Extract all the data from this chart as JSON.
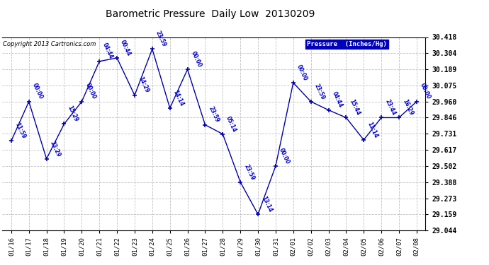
{
  "title": "Barometric Pressure  Daily Low  20130209",
  "copyright": "Copyright 2013 Cartronics.com",
  "legend_label": "Pressure  (Inches/Hg)",
  "x_labels": [
    "01/16",
    "01/17",
    "01/18",
    "01/19",
    "01/20",
    "01/21",
    "01/22",
    "01/23",
    "01/24",
    "01/25",
    "01/26",
    "01/27",
    "01/28",
    "01/29",
    "01/30",
    "01/31",
    "02/01",
    "02/02",
    "02/03",
    "02/04",
    "02/05",
    "02/06",
    "02/07",
    "02/08"
  ],
  "y_values": [
    29.681,
    29.96,
    29.553,
    29.801,
    29.96,
    30.246,
    30.27,
    30.005,
    30.333,
    29.914,
    30.189,
    29.795,
    29.729,
    29.388,
    29.159,
    29.502,
    30.094,
    29.96,
    29.9,
    29.846,
    29.688,
    29.846,
    29.846,
    29.96
  ],
  "annotations": [
    "11:59",
    "00:00",
    "23:29",
    "15:29",
    "00:00",
    "04:44",
    "00:44",
    "14:29",
    "23:59",
    "14:14",
    "00:00",
    "23:59",
    "05:14",
    "23:59",
    "13:14",
    "00:00",
    "00:00",
    "23:59",
    "04:44",
    "15:44",
    "11:14",
    "23:44",
    "16:29",
    "00:00"
  ],
  "y_min": 29.044,
  "y_max": 30.418,
  "y_ticks": [
    29.044,
    29.159,
    29.273,
    29.388,
    29.502,
    29.617,
    29.731,
    29.846,
    29.96,
    30.075,
    30.189,
    30.304,
    30.418
  ],
  "line_color": "#0000aa",
  "marker_color": "#0000aa",
  "bg_color": "#ffffff",
  "grid_color": "#c0c0c0",
  "text_color": "#0000cc",
  "title_color": "#000000",
  "legend_bg": "#0000bb",
  "legend_fg": "#ffffff"
}
